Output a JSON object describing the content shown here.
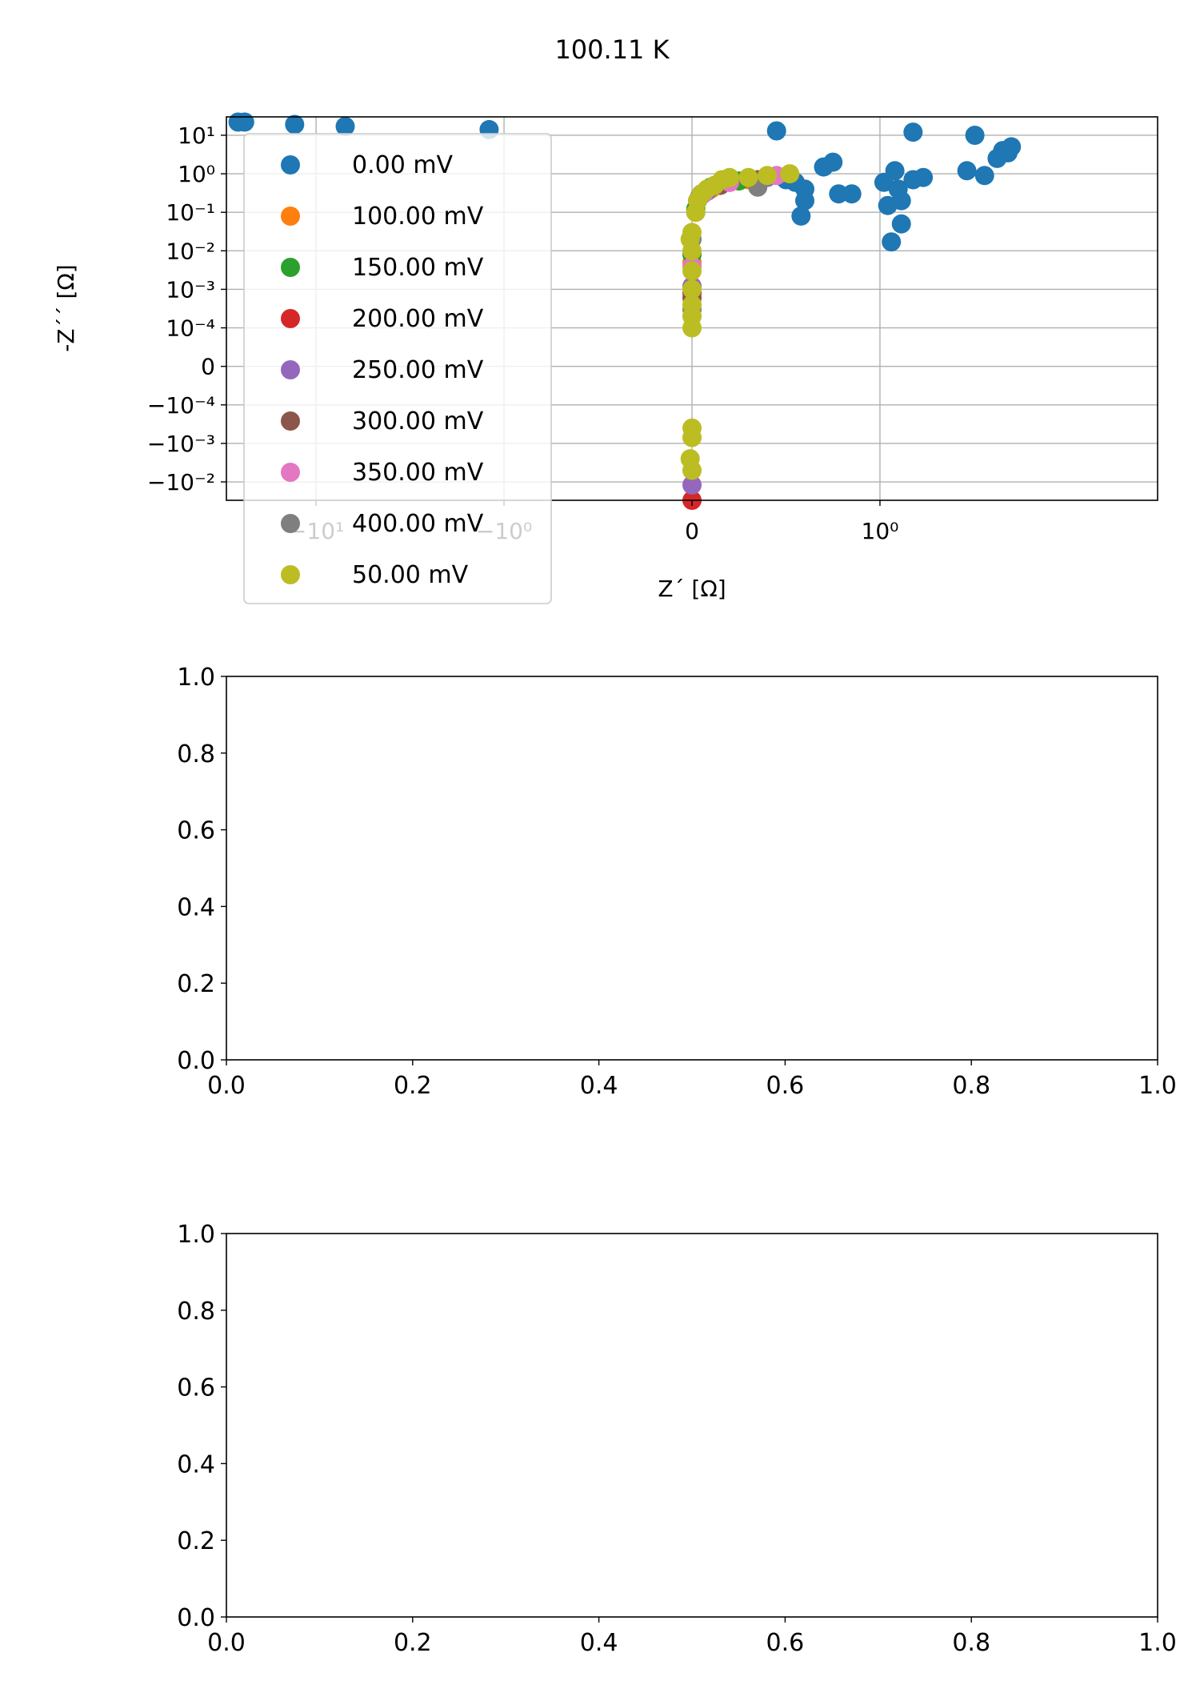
{
  "figure": {
    "title": "100.11 K"
  },
  "chart_data": [
    {
      "type": "scatter",
      "title": "",
      "xlabel": "Z´ [Ω]",
      "ylabel": "-Z´´ [Ω]",
      "xscale": "symlog",
      "yscale": "symlog",
      "xlim": [
        -30,
        30
      ],
      "ylim": [
        -0.03,
        30
      ],
      "grid": true,
      "legend": "upper-left",
      "x_ticks": [
        {
          "value": -10,
          "label": "−10¹"
        },
        {
          "value": -1,
          "label": "−10⁰"
        },
        {
          "value": 0,
          "label": "0"
        },
        {
          "value": 1,
          "label": "10⁰"
        }
      ],
      "y_ticks": [
        {
          "value": 10,
          "label": "10¹"
        },
        {
          "value": 1,
          "label": "10⁰"
        },
        {
          "value": 0.1,
          "label": "10⁻¹"
        },
        {
          "value": 0.01,
          "label": "10⁻²"
        },
        {
          "value": 0.001,
          "label": "10⁻³"
        },
        {
          "value": 0.0001,
          "label": "10⁻⁴"
        },
        {
          "value": 0,
          "label": "0"
        },
        {
          "value": -0.0001,
          "label": "−10⁻⁴"
        },
        {
          "value": -0.001,
          "label": "−10⁻³"
        },
        {
          "value": -0.01,
          "label": "−10⁻²"
        }
      ],
      "series": [
        {
          "name": "0.00 mV",
          "color": "#1f77b4",
          "points": [
            [
              -26,
              22
            ],
            [
              -24,
              22
            ],
            [
              -13,
              19
            ],
            [
              -7,
              17
            ],
            [
              -1.2,
              14
            ],
            [
              0.45,
              13
            ],
            [
              1.5,
              12
            ],
            [
              3.2,
              10
            ],
            [
              5,
              5
            ],
            [
              4.5,
              4
            ],
            [
              4.8,
              3.5
            ],
            [
              0.5,
              0.7
            ],
            [
              0.55,
              0.6
            ],
            [
              0.6,
              0.4
            ],
            [
              0.7,
              1.5
            ],
            [
              0.75,
              2
            ],
            [
              0.78,
              0.3
            ],
            [
              0.6,
              0.2
            ],
            [
              0.58,
              0.08
            ],
            [
              0.85,
              0.3
            ],
            [
              1.05,
              0.6
            ],
            [
              1.1,
              0.15
            ],
            [
              1.15,
              0.017
            ],
            [
              1.2,
              1.2
            ],
            [
              1.25,
              0.4
            ],
            [
              1.3,
              0.2
            ],
            [
              1.3,
              0.05
            ],
            [
              1.5,
              0.7
            ],
            [
              1.7,
              0.8
            ],
            [
              2.9,
              1.2
            ],
            [
              3.6,
              0.9
            ],
            [
              4.2,
              2.5
            ]
          ]
        },
        {
          "name": "100.00 mV",
          "color": "#ff7f0e",
          "points": [
            [
              0.0,
              0.005
            ],
            [
              0.02,
              0.1
            ],
            [
              0.1,
              0.4
            ],
            [
              0.3,
              0.7
            ]
          ]
        },
        {
          "name": "150.00 mV",
          "color": "#2ca02c",
          "points": [
            [
              0.0,
              0.008
            ],
            [
              0.02,
              0.12
            ],
            [
              0.1,
              0.45
            ],
            [
              0.25,
              0.65
            ]
          ]
        },
        {
          "name": "200.00 mV",
          "color": "#d62728",
          "points": [
            [
              0.0,
              0.0008
            ],
            [
              0.0,
              -0.03
            ],
            [
              0.05,
              0.3
            ],
            [
              0.2,
              0.6
            ]
          ]
        },
        {
          "name": "250.00 mV",
          "color": "#9467bd",
          "points": [
            [
              0.0,
              0.0012
            ],
            [
              0.0,
              -0.012
            ],
            [
              0.08,
              0.35
            ],
            [
              0.4,
              0.8
            ]
          ]
        },
        {
          "name": "300.00 mV",
          "color": "#8c564b",
          "points": [
            [
              0.0,
              0.0006
            ],
            [
              0.03,
              0.2
            ],
            [
              0.15,
              0.5
            ],
            [
              0.35,
              0.7
            ]
          ]
        },
        {
          "name": "350.00 mV",
          "color": "#e377c2",
          "points": [
            [
              0.0,
              0.004
            ],
            [
              0.06,
              0.3
            ],
            [
              0.2,
              0.6
            ],
            [
              0.45,
              0.9
            ]
          ]
        },
        {
          "name": "400.00 mV",
          "color": "#7f7f7f",
          "points": [
            [
              0.0,
              0.0003
            ],
            [
              0.0,
              0.02
            ],
            [
              0.04,
              0.25
            ],
            [
              0.35,
              0.45
            ]
          ]
        },
        {
          "name": "50.00 mV",
          "color": "#bcbd22",
          "points": [
            [
              -0.01,
              0.02
            ],
            [
              0.0,
              0.03
            ],
            [
              0.0,
              0.01
            ],
            [
              0.0,
              0.003
            ],
            [
              0.0,
              0.001
            ],
            [
              0.0,
              0.0004
            ],
            [
              0.0,
              0.0002
            ],
            [
              0.0,
              0.0001
            ],
            [
              0.0,
              -0.0004
            ],
            [
              0.0,
              -0.0007
            ],
            [
              -0.01,
              -0.0025
            ],
            [
              0.0,
              -0.005
            ],
            [
              0.02,
              0.1
            ],
            [
              0.03,
              0.2
            ],
            [
              0.05,
              0.3
            ],
            [
              0.08,
              0.4
            ],
            [
              0.12,
              0.5
            ],
            [
              0.16,
              0.7
            ],
            [
              0.2,
              0.8
            ],
            [
              0.3,
              0.8
            ],
            [
              0.4,
              0.9
            ],
            [
              0.52,
              1.0
            ]
          ]
        }
      ]
    },
    {
      "type": "scatter",
      "title": "",
      "xlabel": "",
      "ylabel": "",
      "xlim": [
        0,
        1
      ],
      "ylim": [
        0,
        1
      ],
      "grid": false,
      "x_ticks": [
        "0.0",
        "0.2",
        "0.4",
        "0.6",
        "0.8",
        "1.0"
      ],
      "y_ticks": [
        "0.0",
        "0.2",
        "0.4",
        "0.6",
        "0.8",
        "1.0"
      ],
      "series": []
    },
    {
      "type": "scatter",
      "title": "",
      "xlabel": "",
      "ylabel": "",
      "xlim": [
        0,
        1
      ],
      "ylim": [
        0,
        1
      ],
      "grid": false,
      "x_ticks": [
        "0.0",
        "0.2",
        "0.4",
        "0.6",
        "0.8",
        "1.0"
      ],
      "y_ticks": [
        "0.0",
        "0.2",
        "0.4",
        "0.6",
        "0.8",
        "1.0"
      ],
      "series": []
    }
  ]
}
